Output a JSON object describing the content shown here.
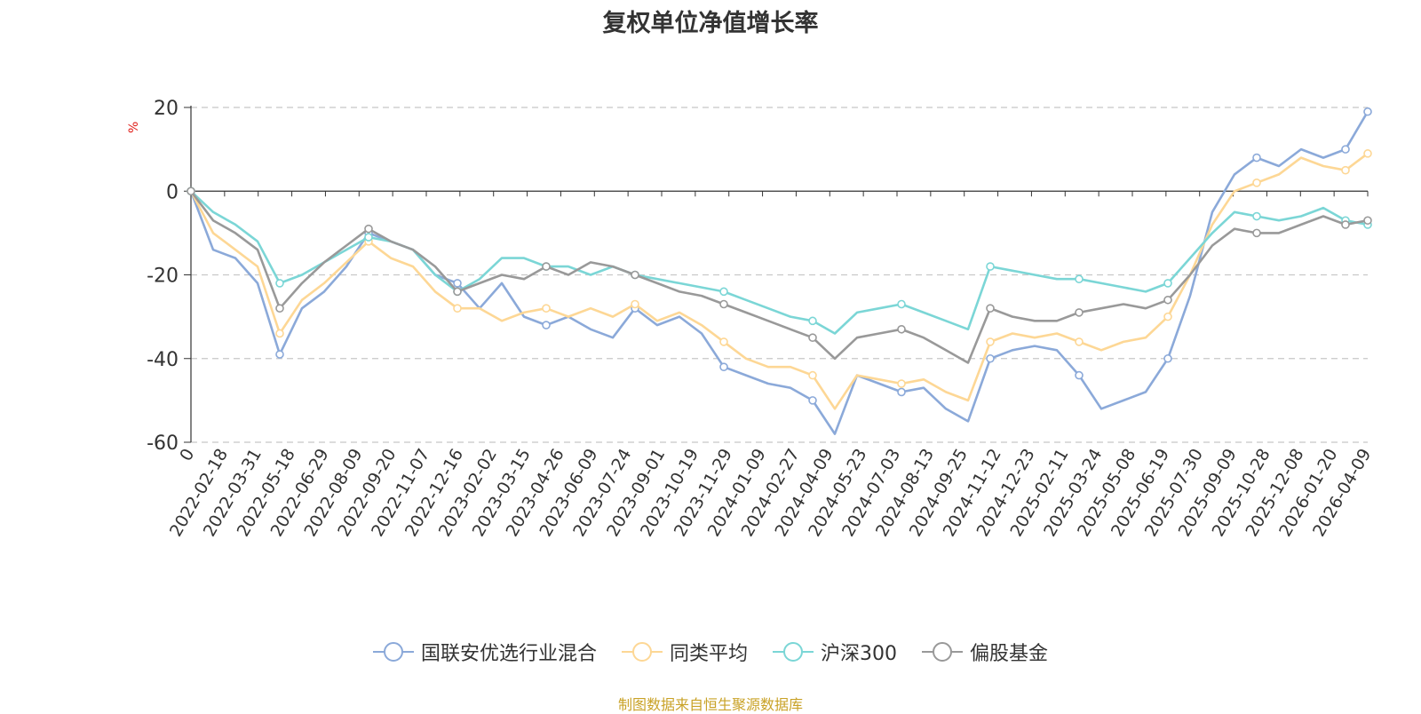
{
  "chart_data": {
    "type": "line",
    "title": "复权单位净值增长率",
    "ylabel": "%",
    "ylim": [
      -60,
      20
    ],
    "yticks": [
      20,
      0,
      -20,
      -40,
      -60
    ],
    "x_tick_labels": [
      "0",
      "2022-02-18",
      "2022-03-31",
      "2022-05-18",
      "2022-06-29",
      "2022-08-09",
      "2022-09-20",
      "2022-11-07",
      "2022-12-16",
      "2023-02-02",
      "2023-03-15",
      "2023-04-26",
      "2023-06-09",
      "2023-07-24",
      "2023-09-01",
      "2023-10-19",
      "2023-11-29",
      "2024-01-09",
      "2024-02-27",
      "2024-04-09",
      "2024-05-23",
      "2024-07-03",
      "2024-08-13",
      "2024-09-25",
      "2024-11-12",
      "2024-12-23",
      "2025-02-11",
      "2025-03-24",
      "2025-05-08",
      "2025-06-19",
      "2025-07-30",
      "2025-09-09",
      "2025-10-28",
      "2025-12-08",
      "2026-01-20",
      "2026-04-09"
    ],
    "series": [
      {
        "name": "国联安优选行业混合",
        "color": "#8ba9d9",
        "values": [
          0,
          -14,
          -16,
          -22,
          -39,
          -28,
          -24,
          -18,
          -10,
          -12,
          -14,
          -20,
          -22,
          -28,
          -22,
          -30,
          -32,
          -30,
          -33,
          -35,
          -28,
          -32,
          -30,
          -34,
          -42,
          -44,
          -46,
          -47,
          -50,
          -58,
          -44,
          -46,
          -48,
          -47,
          -52,
          -55,
          -40,
          -38,
          -37,
          -38,
          -44,
          -52,
          -50,
          -48,
          -40,
          -25,
          -5,
          4,
          8,
          6,
          10,
          8,
          10,
          19
        ]
      },
      {
        "name": "同类平均",
        "color": "#fdd795",
        "values": [
          0,
          -10,
          -14,
          -18,
          -34,
          -26,
          -22,
          -17,
          -12,
          -16,
          -18,
          -24,
          -28,
          -28,
          -31,
          -29,
          -28,
          -30,
          -28,
          -30,
          -27,
          -31,
          -29,
          -32,
          -36,
          -40,
          -42,
          -42,
          -44,
          -52,
          -44,
          -45,
          -46,
          -45,
          -48,
          -50,
          -36,
          -34,
          -35,
          -34,
          -36,
          -38,
          -36,
          -35,
          -30,
          -20,
          -8,
          0,
          2,
          4,
          8,
          6,
          5,
          9
        ]
      },
      {
        "name": "沪深300",
        "color": "#7bd6d6",
        "values": [
          0,
          -5,
          -8,
          -12,
          -22,
          -20,
          -17,
          -14,
          -11,
          -12,
          -14,
          -20,
          -24,
          -21,
          -16,
          -16,
          -18,
          -18,
          -20,
          -18,
          -20,
          -21,
          -22,
          -23,
          -24,
          -26,
          -28,
          -30,
          -31,
          -34,
          -29,
          -28,
          -27,
          -29,
          -31,
          -33,
          -18,
          -19,
          -20,
          -21,
          -21,
          -22,
          -23,
          -24,
          -22,
          -16,
          -10,
          -5,
          -6,
          -7,
          -6,
          -4,
          -7,
          -8
        ]
      },
      {
        "name": "偏股基金",
        "color": "#999999",
        "values": [
          0,
          -7,
          -10,
          -14,
          -28,
          -22,
          -17,
          -13,
          -9,
          -12,
          -14,
          -18,
          -24,
          -22,
          -20,
          -21,
          -18,
          -20,
          -17,
          -18,
          -20,
          -22,
          -24,
          -25,
          -27,
          -29,
          -31,
          -33,
          -35,
          -40,
          -35,
          -34,
          -33,
          -35,
          -38,
          -41,
          -28,
          -30,
          -31,
          -31,
          -29,
          -28,
          -27,
          -28,
          -26,
          -20,
          -13,
          -9,
          -10,
          -10,
          -8,
          -6,
          -8,
          -7
        ]
      }
    ]
  },
  "legend": [
    {
      "label": "国联安优选行业混合",
      "color": "#8ba9d9"
    },
    {
      "label": "同类平均",
      "color": "#fdd795"
    },
    {
      "label": "沪深300",
      "color": "#7bd6d6"
    },
    {
      "label": "偏股基金",
      "color": "#999999"
    }
  ],
  "footer": {
    "source": "制图数据来自恒生聚源数据库"
  }
}
